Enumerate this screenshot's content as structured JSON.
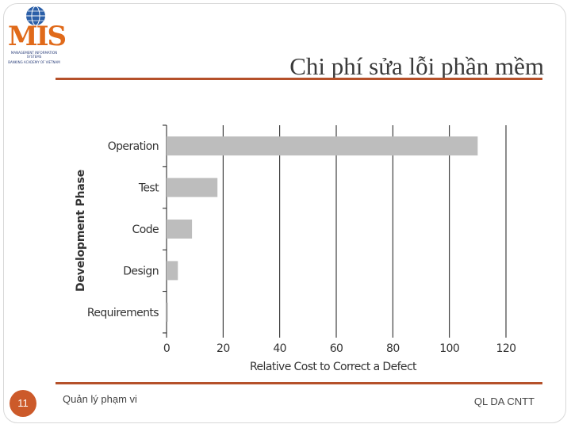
{
  "slide": {
    "title": "Chi phí sửa lỗi phần mềm",
    "page_number": "11",
    "footer_left": "Quản lý phạm vi",
    "footer_right": "QL DA CNTT"
  },
  "logo": {
    "wordmark": "MIS",
    "line1": "MANAGEMENT INFORMATION SYSTEMS",
    "line2": "BANKING ACADEMY OF VIETNAM",
    "colors": {
      "wordmark": "#e06a1a",
      "globe": "#2b5fa8"
    }
  },
  "colors": {
    "accent_rule": "#b5512a",
    "badge": "#cc5a2a",
    "bar": "#bdbdbd"
  },
  "chart_data": {
    "type": "bar",
    "orientation": "horizontal",
    "title": "",
    "xlabel": "Relative Cost to Correct a Defect",
    "ylabel": "Development Phase",
    "categories": [
      "Operation",
      "Test",
      "Code",
      "Design",
      "Requirements"
    ],
    "values": [
      110,
      18,
      9,
      4,
      0.5
    ],
    "xlim": [
      0,
      120
    ],
    "xticks": [
      0,
      20,
      40,
      60,
      80,
      100,
      120
    ],
    "grid": "vertical",
    "legend": "none"
  }
}
